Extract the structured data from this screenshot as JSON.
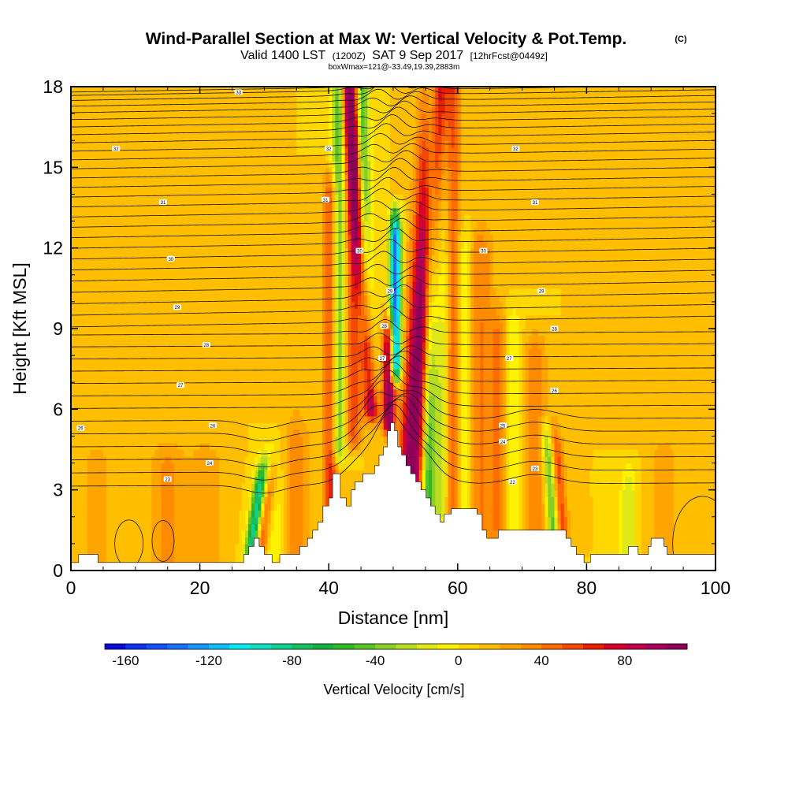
{
  "header": {
    "title": "Wind-Parallel Section at Max W: Vertical Velocity & Pot.Temp.",
    "copyright": "(C)",
    "valid_prefix": "Valid 1400 LST",
    "valid_utc": "(1200Z)",
    "valid_date": "SAT 9 Sep 2017",
    "forecast": "[12hrFcst@0449z]",
    "box_info": "boxWmax=121@-33.49,19.39,2883m"
  },
  "chart_data": {
    "type": "heatmap",
    "xlabel": "Distance [nm]",
    "ylabel": "Height [Kft MSL]",
    "xlim": [
      0,
      100
    ],
    "ylim": [
      0,
      18
    ],
    "x_ticks": [
      0,
      20,
      40,
      60,
      80,
      100
    ],
    "x_tick_labels": [
      "0",
      "20",
      "40",
      "60",
      "80",
      "100"
    ],
    "y_ticks": [
      0,
      3,
      6,
      9,
      12,
      15,
      18
    ],
    "y_tick_labels": [
      "0",
      "3",
      "6",
      "9",
      "12",
      "15",
      "18"
    ],
    "background_level_cms": 10,
    "w_features": [
      {
        "x0": 51.8,
        "slope": 0.28,
        "width": 2.0,
        "amp": 110,
        "zmin": 1.5,
        "zmax": 18
      },
      {
        "x0": 50.3,
        "slope": 0.0,
        "width": 0.9,
        "amp": -150,
        "zmin": 7.5,
        "zmax": 12.5
      },
      {
        "x0": 49.3,
        "slope": 0.0,
        "width": 0.9,
        "amp": 105,
        "zmin": 5.5,
        "zmax": 8.5
      },
      {
        "x0": 48.4,
        "slope": -0.3,
        "width": 1.1,
        "amp": 85,
        "zmin": 6,
        "zmax": 18
      },
      {
        "x0": 47.0,
        "slope": -0.1,
        "width": 1.2,
        "amp": -35,
        "zmin": 7,
        "zmax": 18
      },
      {
        "x0": 45.2,
        "slope": 0.0,
        "width": 0.9,
        "amp": -35,
        "zmin": 9,
        "zmax": 18
      },
      {
        "x0": 43.8,
        "slope": 0.0,
        "width": 1.3,
        "amp": 45,
        "zmin": 5,
        "zmax": 18
      },
      {
        "x0": 41.5,
        "slope": 0.0,
        "width": 1.1,
        "amp": -60,
        "zmin": 4.5,
        "zmax": 18
      },
      {
        "x0": 40.3,
        "slope": 0.0,
        "width": 1.1,
        "amp": 55,
        "zmin": 1.5,
        "zmax": 14
      },
      {
        "x0": 55.2,
        "slope": 0.05,
        "width": 1.1,
        "amp": -75,
        "zmin": 2,
        "zmax": 18
      },
      {
        "x0": 57.3,
        "slope": 0.05,
        "width": 1.3,
        "amp": -35,
        "zmin": 2,
        "zmax": 18
      },
      {
        "x0": 59.2,
        "slope": 0.0,
        "width": 1.2,
        "amp": 45,
        "zmin": 1.5,
        "zmax": 18
      },
      {
        "x0": 61.0,
        "slope": 0.0,
        "width": 1.3,
        "amp": -25,
        "zmin": 1.5,
        "zmax": 12
      },
      {
        "x0": 63.5,
        "slope": 0.0,
        "width": 2.0,
        "amp": 30,
        "zmin": 1.5,
        "zmax": 12
      },
      {
        "x0": 66.5,
        "slope": 0.0,
        "width": 1.5,
        "amp": 28,
        "zmin": 1.2,
        "zmax": 9
      },
      {
        "x0": 68.5,
        "slope": 0.0,
        "width": 1.3,
        "amp": -22,
        "zmin": 1.2,
        "zmax": 9
      },
      {
        "x0": 72.0,
        "slope": 0.0,
        "width": 1.8,
        "amp": 28,
        "zmin": 1.2,
        "zmax": 8
      },
      {
        "x0": 75.3,
        "slope": -0.3,
        "width": 0.9,
        "amp": -60,
        "zmin": 1.5,
        "zmax": 4.5
      },
      {
        "x0": 76.7,
        "slope": -0.3,
        "width": 1.0,
        "amp": 45,
        "zmin": 1.5,
        "zmax": 4.5
      },
      {
        "x0": 27.4,
        "slope": 0.6,
        "width": 1.0,
        "amp": -95,
        "zmin": 0.8,
        "zmax": 3.2
      },
      {
        "x0": 29.0,
        "slope": 0.6,
        "width": 1.0,
        "amp": 45,
        "zmin": 0.8,
        "zmax": 3.2
      },
      {
        "x0": 31.5,
        "slope": 0.0,
        "width": 1.5,
        "amp": -20,
        "zmin": 0.5,
        "zmax": 4
      },
      {
        "x0": 15.0,
        "slope": 0.0,
        "width": 3.0,
        "amp": 22,
        "zmin": 0.3,
        "zmax": 4
      },
      {
        "x0": 21.0,
        "slope": 0.0,
        "width": 2.5,
        "amp": 18,
        "zmin": 0.3,
        "zmax": 4
      },
      {
        "x0": 35.0,
        "slope": 0.0,
        "width": 2.0,
        "amp": 25,
        "zmin": 0.5,
        "zmax": 5
      },
      {
        "x0": 86.5,
        "slope": 0.0,
        "width": 1.2,
        "amp": -30,
        "zmin": 0.5,
        "zmax": 3
      },
      {
        "x0": 92.0,
        "slope": 0.0,
        "width": 2.0,
        "amp": 20,
        "zmin": 0.5,
        "zmax": 4
      },
      {
        "x0": 4.0,
        "slope": 0.0,
        "width": 2.5,
        "amp": 15,
        "zmin": 0.3,
        "zmax": 4
      }
    ],
    "terrain_kft": [
      [
        0,
        0.3
      ],
      [
        1.2,
        0.3
      ],
      [
        1.2,
        0.6
      ],
      [
        4.2,
        0.6
      ],
      [
        4.2,
        0.3
      ],
      [
        26.8,
        0.3
      ],
      [
        26.8,
        0.6
      ],
      [
        27.6,
        0.6
      ],
      [
        27.6,
        0.9
      ],
      [
        28.4,
        0.9
      ],
      [
        28.4,
        1.2
      ],
      [
        29.2,
        1.2
      ],
      [
        29.2,
        0.9
      ],
      [
        30.0,
        0.9
      ],
      [
        30.0,
        0.6
      ],
      [
        31.2,
        0.6
      ],
      [
        31.2,
        0.3
      ],
      [
        32.4,
        0.3
      ],
      [
        32.4,
        0.6
      ],
      [
        35.5,
        0.6
      ],
      [
        35.5,
        0.9
      ],
      [
        36.7,
        0.9
      ],
      [
        36.7,
        1.2
      ],
      [
        37.5,
        1.2
      ],
      [
        37.5,
        1.5
      ],
      [
        38.3,
        1.5
      ],
      [
        38.3,
        1.8
      ],
      [
        39.1,
        1.8
      ],
      [
        39.1,
        2.4
      ],
      [
        40.0,
        2.4
      ],
      [
        40.0,
        2.7
      ],
      [
        40.6,
        2.7
      ],
      [
        40.6,
        3.6
      ],
      [
        41.8,
        3.6
      ],
      [
        41.8,
        2.7
      ],
      [
        42.7,
        2.7
      ],
      [
        42.7,
        2.4
      ],
      [
        43.5,
        2.4
      ],
      [
        43.5,
        3.0
      ],
      [
        44.1,
        3.0
      ],
      [
        44.1,
        3.3
      ],
      [
        45.3,
        3.3
      ],
      [
        45.3,
        3.6
      ],
      [
        47.1,
        3.6
      ],
      [
        47.1,
        3.9
      ],
      [
        47.8,
        3.9
      ],
      [
        47.8,
        4.3
      ],
      [
        48.5,
        4.3
      ],
      [
        48.5,
        4.6
      ],
      [
        49.1,
        4.6
      ],
      [
        49.1,
        5.2
      ],
      [
        49.6,
        5.2
      ],
      [
        49.6,
        5.5
      ],
      [
        50.2,
        5.5
      ],
      [
        50.2,
        5.2
      ],
      [
        50.7,
        5.2
      ],
      [
        50.7,
        4.6
      ],
      [
        51.3,
        4.6
      ],
      [
        51.3,
        4.3
      ],
      [
        52.0,
        4.3
      ],
      [
        52.0,
        3.9
      ],
      [
        52.7,
        3.9
      ],
      [
        52.7,
        3.6
      ],
      [
        53.5,
        3.6
      ],
      [
        53.5,
        3.3
      ],
      [
        54.3,
        3.3
      ],
      [
        54.3,
        3.0
      ],
      [
        55.1,
        3.0
      ],
      [
        55.1,
        2.7
      ],
      [
        55.8,
        2.7
      ],
      [
        55.8,
        2.4
      ],
      [
        56.5,
        2.4
      ],
      [
        56.5,
        2.1
      ],
      [
        57.3,
        2.1
      ],
      [
        57.3,
        1.8
      ],
      [
        57.9,
        1.8
      ],
      [
        57.9,
        2.1
      ],
      [
        59.0,
        2.1
      ],
      [
        59.0,
        2.3
      ],
      [
        63.0,
        2.3
      ],
      [
        63.0,
        2.1
      ],
      [
        63.8,
        2.1
      ],
      [
        63.8,
        1.5
      ],
      [
        64.5,
        1.5
      ],
      [
        64.5,
        1.2
      ],
      [
        66.3,
        1.2
      ],
      [
        66.3,
        1.5
      ],
      [
        76.8,
        1.5
      ],
      [
        76.8,
        1.2
      ],
      [
        77.6,
        1.2
      ],
      [
        77.6,
        0.9
      ],
      [
        78.4,
        0.9
      ],
      [
        78.4,
        0.6
      ],
      [
        79.6,
        0.6
      ],
      [
        79.6,
        0.3
      ],
      [
        80.6,
        0.3
      ],
      [
        80.6,
        0.6
      ],
      [
        86.5,
        0.6
      ],
      [
        86.5,
        0.9
      ],
      [
        88.0,
        0.9
      ],
      [
        88.0,
        0.6
      ],
      [
        89.0,
        0.6
      ],
      [
        89.0,
        0.6
      ],
      [
        89.6,
        0.6
      ],
      [
        89.6,
        0.9
      ],
      [
        90.0,
        0.9
      ],
      [
        90.0,
        1.2
      ],
      [
        92.0,
        1.2
      ],
      [
        92.0,
        0.9
      ],
      [
        92.5,
        0.9
      ],
      [
        92.5,
        0.6
      ],
      [
        100,
        0.6
      ],
      [
        100,
        0.3
      ]
    ],
    "theta_contours": {
      "count": 40,
      "top_height_kft": 18,
      "bottom_height_kft": 3.2,
      "bump_center_nm": 50,
      "labels": [
        {
          "x": 26,
          "h": 17.8,
          "text": "33"
        },
        {
          "x": 7,
          "h": 15.7,
          "text": "32"
        },
        {
          "x": 40,
          "h": 15.7,
          "text": "32"
        },
        {
          "x": 69,
          "h": 15.7,
          "text": "32"
        },
        {
          "x": 14.3,
          "h": 13.7,
          "text": "31"
        },
        {
          "x": 39.5,
          "h": 13.8,
          "text": "31"
        },
        {
          "x": 72,
          "h": 13.7,
          "text": "31"
        },
        {
          "x": 15.5,
          "h": 11.6,
          "text": "30"
        },
        {
          "x": 44.8,
          "h": 11.9,
          "text": "30"
        },
        {
          "x": 64,
          "h": 11.9,
          "text": "30"
        },
        {
          "x": 16.5,
          "h": 9.8,
          "text": "29"
        },
        {
          "x": 49.5,
          "h": 10.4,
          "text": "29"
        },
        {
          "x": 73,
          "h": 10.4,
          "text": "29"
        },
        {
          "x": 21,
          "h": 8.4,
          "text": "28"
        },
        {
          "x": 48.6,
          "h": 9.1,
          "text": "28"
        },
        {
          "x": 75,
          "h": 9.0,
          "text": "28"
        },
        {
          "x": 17,
          "h": 6.9,
          "text": "27"
        },
        {
          "x": 48.3,
          "h": 7.9,
          "text": "27"
        },
        {
          "x": 68,
          "h": 7.9,
          "text": "27"
        },
        {
          "x": 1.5,
          "h": 5.3,
          "text": "26"
        },
        {
          "x": 22,
          "h": 5.4,
          "text": "26"
        },
        {
          "x": 75,
          "h": 6.7,
          "text": "26"
        },
        {
          "x": 67,
          "h": 5.4,
          "text": "25"
        },
        {
          "x": 21.5,
          "h": 4.0,
          "text": "24"
        },
        {
          "x": 67,
          "h": 4.8,
          "text": "24"
        },
        {
          "x": 15,
          "h": 3.4,
          "text": "23"
        },
        {
          "x": 72,
          "h": 3.8,
          "text": "23"
        },
        {
          "x": 68.5,
          "h": 3.3,
          "text": "22"
        }
      ]
    },
    "colorbar": {
      "label": "Vertical Velocity [cm/s]",
      "ticks": [
        "-160",
        "-120",
        "-80",
        "-40",
        "0",
        "40",
        "80"
      ],
      "min": -170,
      "max": 110,
      "step": 10,
      "colors": [
        "#0a0ad8",
        "#1030f0",
        "#1550f8",
        "#1d6ffb",
        "#1897fb",
        "#10bff8",
        "#08e8f0",
        "#10e0c0",
        "#10d090",
        "#14c060",
        "#18b040",
        "#30b828",
        "#58c428",
        "#88d028",
        "#b8dc20",
        "#e0e818",
        "#fff200",
        "#ffd800",
        "#ffbe00",
        "#ffa500",
        "#ff8c00",
        "#ff6c00",
        "#f54800",
        "#e82000",
        "#d80028",
        "#c0004a",
        "#a8005c",
        "#900058"
      ]
    }
  }
}
